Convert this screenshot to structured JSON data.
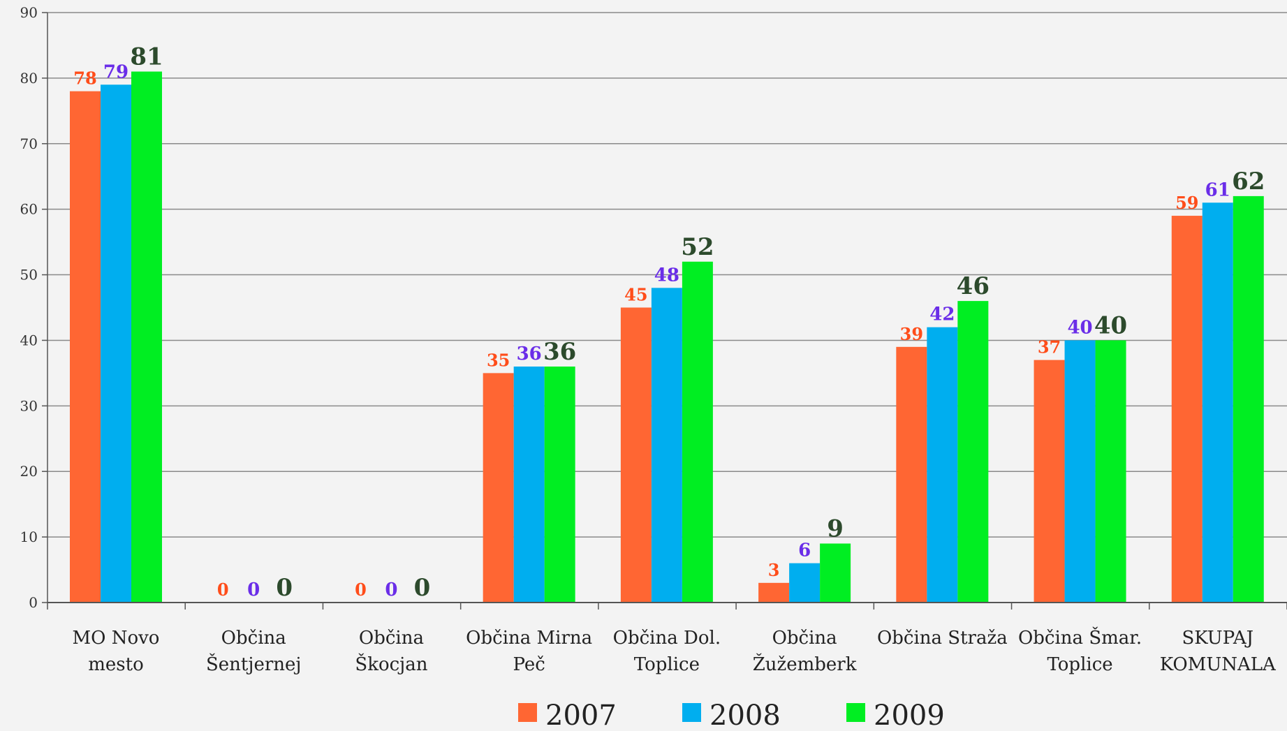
{
  "colors": {
    "2007": "#ff6633",
    "2008": "#00aeef",
    "2009": "#00ee22"
  },
  "label_colors": {
    "2007": "#ff4d1a",
    "2008": "#6a2de8",
    "2009": "#2c4a2c"
  },
  "chart_data": {
    "type": "bar",
    "categories": [
      [
        "MO Novo",
        "mesto"
      ],
      [
        "Občina",
        "Šentjernej"
      ],
      [
        "Občina",
        "Škocjan"
      ],
      [
        "Občina Mirna",
        "Peč"
      ],
      [
        "Občina Dol.",
        "Toplice"
      ],
      [
        "Občina",
        "Žužemberk"
      ],
      [
        "Občina Straža"
      ],
      [
        "Občina Šmar.",
        "Toplice"
      ],
      [
        "SKUPAJ",
        "KOMUNALA"
      ]
    ],
    "series": [
      {
        "name": "2007",
        "values": [
          78,
          0,
          0,
          35,
          45,
          3,
          39,
          37,
          59
        ]
      },
      {
        "name": "2008",
        "values": [
          79,
          0,
          0,
          36,
          48,
          6,
          42,
          40,
          61
        ]
      },
      {
        "name": "2009",
        "values": [
          81,
          0,
          0,
          36,
          52,
          9,
          46,
          40,
          62
        ]
      }
    ],
    "ylim": [
      0,
      90
    ],
    "yticks": [
      0,
      10,
      20,
      30,
      40,
      50,
      60,
      70,
      80,
      90
    ],
    "grid": true,
    "legend": "bottom-center"
  }
}
